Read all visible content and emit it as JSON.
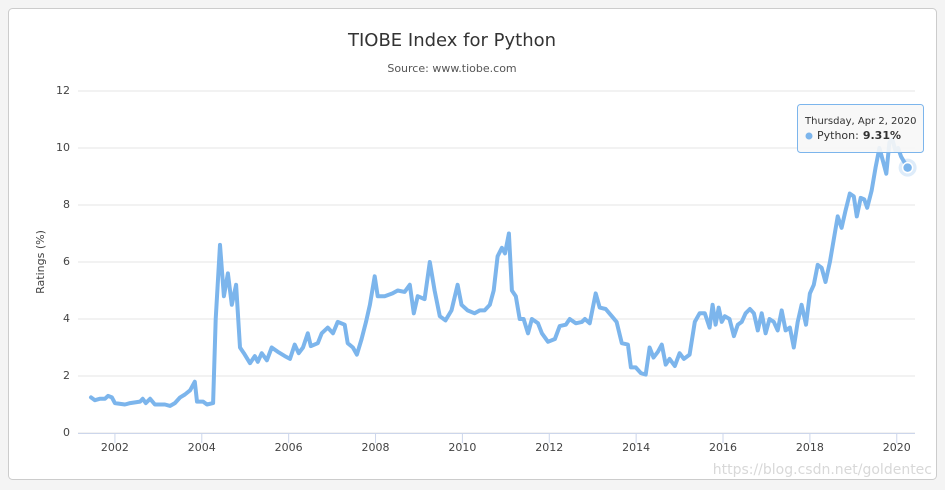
{
  "chart_data": {
    "type": "line",
    "title": "TIOBE Index for Python",
    "subtitle": "Source: www.tiobe.com",
    "y_label": "Ratings (%)",
    "watermark": "https://blog.csdn.net/goldentec",
    "grid": true,
    "xlim": [
      2001.15,
      2020.42
    ],
    "xticks": [
      2002,
      2004,
      2006,
      2008,
      2010,
      2012,
      2014,
      2016,
      2018,
      2020
    ],
    "ylim": [
      0,
      12
    ],
    "yticks": [
      0,
      2,
      4,
      6,
      8,
      10,
      12
    ],
    "x": [
      2001.45,
      2001.54,
      2001.65,
      2001.77,
      2001.84,
      2001.93,
      2002.0,
      2002.23,
      2002.35,
      2002.58,
      2002.64,
      2002.71,
      2002.81,
      2002.92,
      2003.15,
      2003.27,
      2003.38,
      2003.5,
      2003.61,
      2003.73,
      2003.84,
      2003.89,
      2004.03,
      2004.12,
      2004.26,
      2004.32,
      2004.42,
      2004.51,
      2004.6,
      2004.69,
      2004.79,
      2004.88,
      2004.97,
      2005.11,
      2005.22,
      2005.29,
      2005.38,
      2005.5,
      2005.61,
      2005.75,
      2005.91,
      2006.03,
      2006.14,
      2006.23,
      2006.33,
      2006.44,
      2006.51,
      2006.67,
      2006.76,
      2006.9,
      2007.02,
      2007.13,
      2007.29,
      2007.36,
      2007.48,
      2007.57,
      2007.68,
      2007.78,
      2007.87,
      2007.98,
      2008.05,
      2008.21,
      2008.39,
      2008.51,
      2008.67,
      2008.79,
      2008.88,
      2008.97,
      2009.13,
      2009.25,
      2009.36,
      2009.48,
      2009.61,
      2009.75,
      2009.89,
      2009.98,
      2010.12,
      2010.28,
      2010.4,
      2010.51,
      2010.63,
      2010.72,
      2010.81,
      2010.91,
      2010.98,
      2011.07,
      2011.14,
      2011.23,
      2011.32,
      2011.41,
      2011.51,
      2011.6,
      2011.74,
      2011.83,
      2011.97,
      2012.13,
      2012.24,
      2012.38,
      2012.47,
      2012.61,
      2012.75,
      2012.82,
      2012.93,
      2013.07,
      2013.16,
      2013.3,
      2013.44,
      2013.55,
      2013.67,
      2013.81,
      2013.88,
      2013.99,
      2014.11,
      2014.22,
      2014.31,
      2014.4,
      2014.5,
      2014.59,
      2014.68,
      2014.77,
      2014.89,
      2015.0,
      2015.1,
      2015.23,
      2015.35,
      2015.46,
      2015.58,
      2015.69,
      2015.76,
      2015.83,
      2015.9,
      2015.97,
      2016.04,
      2016.15,
      2016.25,
      2016.34,
      2016.43,
      2016.52,
      2016.62,
      2016.71,
      2016.8,
      2016.89,
      2016.98,
      2017.07,
      2017.17,
      2017.26,
      2017.35,
      2017.44,
      2017.54,
      2017.63,
      2017.72,
      2017.81,
      2017.91,
      2018.0,
      2018.09,
      2018.18,
      2018.27,
      2018.36,
      2018.46,
      2018.55,
      2018.64,
      2018.73,
      2018.82,
      2018.92,
      2019.01,
      2019.08,
      2019.17,
      2019.25,
      2019.32,
      2019.42,
      2019.51,
      2019.6,
      2019.69,
      2019.76,
      2019.83,
      2019.9,
      2019.97,
      2020.03,
      2020.1,
      2020.25
    ],
    "series": [
      {
        "name": "Python",
        "color": "#7cb5ec",
        "values": [
          1.25,
          1.15,
          1.2,
          1.2,
          1.3,
          1.25,
          1.05,
          1.0,
          1.05,
          1.1,
          1.2,
          1.05,
          1.2,
          1.0,
          1.0,
          0.95,
          1.05,
          1.25,
          1.35,
          1.5,
          1.8,
          1.1,
          1.1,
          1.0,
          1.05,
          4.0,
          6.6,
          4.8,
          5.6,
          4.5,
          5.2,
          3.0,
          2.8,
          2.45,
          2.7,
          2.5,
          2.8,
          2.55,
          3.0,
          2.85,
          2.7,
          2.6,
          3.1,
          2.8,
          3.0,
          3.5,
          3.05,
          3.15,
          3.5,
          3.7,
          3.5,
          3.9,
          3.8,
          3.15,
          3.0,
          2.75,
          3.3,
          3.9,
          4.5,
          5.5,
          4.8,
          4.8,
          4.9,
          5.0,
          4.95,
          5.2,
          4.2,
          4.8,
          4.7,
          6.0,
          5.0,
          4.1,
          3.95,
          4.3,
          5.2,
          4.5,
          4.3,
          4.2,
          4.3,
          4.3,
          4.5,
          5.0,
          6.2,
          6.5,
          6.3,
          7.0,
          5.0,
          4.8,
          4.0,
          4.0,
          3.5,
          4.0,
          3.85,
          3.5,
          3.2,
          3.3,
          3.75,
          3.8,
          4.0,
          3.85,
          3.9,
          4.0,
          3.85,
          4.9,
          4.4,
          4.35,
          4.1,
          3.9,
          3.15,
          3.1,
          2.3,
          2.3,
          2.1,
          2.05,
          3.0,
          2.65,
          2.85,
          3.1,
          2.4,
          2.6,
          2.35,
          2.8,
          2.6,
          2.75,
          3.9,
          4.2,
          4.2,
          3.7,
          4.5,
          3.8,
          4.4,
          3.9,
          4.1,
          4.0,
          3.4,
          3.8,
          3.9,
          4.2,
          4.35,
          4.2,
          3.6,
          4.2,
          3.5,
          4.0,
          3.9,
          3.6,
          4.3,
          3.6,
          3.7,
          3.0,
          3.9,
          4.5,
          3.8,
          4.9,
          5.2,
          5.9,
          5.8,
          5.3,
          6.0,
          6.8,
          7.6,
          7.2,
          7.8,
          8.4,
          8.3,
          7.6,
          8.25,
          8.2,
          7.9,
          8.5,
          9.3,
          10.0,
          9.5,
          9.1,
          10.2,
          10.3,
          9.9,
          10.0,
          9.7,
          9.31
        ]
      }
    ],
    "tooltip": {
      "header": "Thursday, Apr 2, 2020",
      "label": "Python:",
      "value": 9.31,
      "value_label": "9.31%"
    }
  }
}
